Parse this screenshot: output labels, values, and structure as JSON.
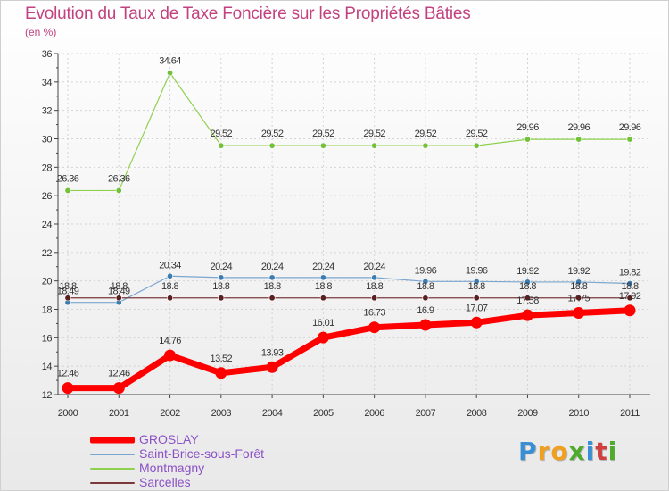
{
  "title": "Evolution du Taux de Taxe Foncière sur les Propriétés Bâties",
  "subtitle": "(en %)",
  "logo": {
    "letters": [
      "P",
      "r",
      "o",
      "x",
      "i",
      "t",
      "i"
    ],
    "colors": [
      "#3a8fd4",
      "#f0a020",
      "#f0a020",
      "#4faa2e",
      "#3a8fd4",
      "#d04040",
      "#4faa2e"
    ]
  },
  "chart_data": {
    "type": "line",
    "title": "Evolution du Taux de Taxe Foncière sur les Propriétés Bâties",
    "ylabel": "(en %)",
    "xlabel": "",
    "ylim": [
      12,
      36
    ],
    "yticks": [
      12,
      14,
      16,
      18,
      20,
      22,
      24,
      26,
      28,
      30,
      32,
      34,
      36
    ],
    "categories": [
      "2000",
      "2001",
      "2002",
      "2003",
      "2004",
      "2005",
      "2006",
      "2007",
      "2008",
      "2009",
      "2010",
      "2011"
    ],
    "series": [
      {
        "name": "Montmagny",
        "color": "#8fd14f",
        "marker": "#73c03a",
        "width": 1.2,
        "values": [
          26.36,
          26.36,
          34.64,
          29.52,
          29.52,
          29.52,
          29.52,
          29.52,
          29.52,
          29.96,
          29.96,
          29.96
        ],
        "labels": [
          "26.36",
          "26.36",
          "34.64",
          "29.52",
          "29.52",
          "29.52",
          "29.52",
          "29.52",
          "29.52",
          "29.96",
          "29.96",
          "29.96"
        ]
      },
      {
        "name": "Saint-Brice-sous-Forêt",
        "color": "#7aa6cf",
        "marker": "#3d7cb0",
        "width": 1.2,
        "values": [
          18.49,
          18.49,
          20.34,
          20.24,
          20.24,
          20.24,
          20.24,
          19.96,
          19.96,
          19.92,
          19.92,
          19.82
        ],
        "labels": [
          "18.49",
          "18.49",
          "20.34",
          "20.24",
          "20.24",
          "20.24",
          "20.24",
          "19.96",
          "19.96",
          "19.92",
          "19.92",
          "19.82"
        ]
      },
      {
        "name": "Sarcelles",
        "color": "#7a3a3a",
        "marker": "#5a1f1f",
        "width": 1.2,
        "values": [
          18.8,
          18.8,
          18.8,
          18.8,
          18.8,
          18.8,
          18.8,
          18.8,
          18.8,
          18.8,
          18.8,
          18.8
        ],
        "labels": [
          "18.8",
          "18.8",
          "18.8",
          "18.8",
          "18.8",
          "18.8",
          "18.8",
          "18.8",
          "18.8",
          "18.8",
          "18.8",
          "18.8"
        ]
      },
      {
        "name": "GROSLAY",
        "color": "#ff0000",
        "marker": "#ff0000",
        "width": 7,
        "values": [
          12.46,
          12.46,
          14.76,
          13.52,
          13.93,
          16.01,
          16.73,
          16.9,
          17.07,
          17.58,
          17.75,
          17.92
        ],
        "labels": [
          "12.46",
          "12.46",
          "14.76",
          "13.52",
          "13.93",
          "16.01",
          "16.73",
          "16.9",
          "17.07",
          "17.58",
          "17.75",
          "17.92"
        ]
      }
    ],
    "legend": [
      "GROSLAY",
      "Saint-Brice-sous-Forêt",
      "Montmagny",
      "Sarcelles"
    ]
  }
}
